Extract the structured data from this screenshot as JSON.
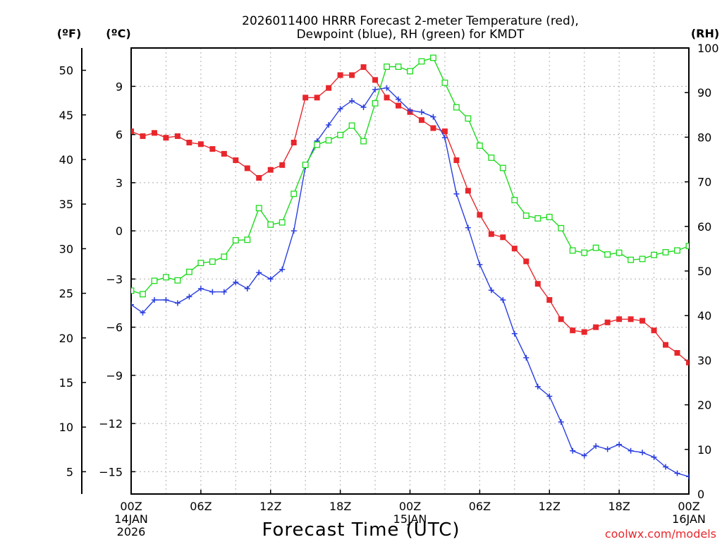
{
  "chart_data": {
    "type": "line",
    "title_line1": "2026011400 HRRR Forecast 2-meter Temperature (red),",
    "title_line2": "Dewpoint (blue), RH (green) for KMDT",
    "xlabel": "Forecast Time (UTC)",
    "credit": "coolwx.com/models",
    "units": {
      "fahrenheit": "(ºF)",
      "celsius": "(ºC)",
      "rh": "(RH)"
    },
    "left_axis_f": {
      "ylim": [
        2.5,
        52.5
      ],
      "ticks": [
        5,
        10,
        15,
        20,
        25,
        30,
        35,
        40,
        45,
        50
      ]
    },
    "left_axis_c": {
      "ylim": [
        -16.39,
        11.39
      ],
      "ticks": [
        -15,
        -12,
        -9,
        -6,
        -3,
        0,
        3,
        6,
        9
      ]
    },
    "right_axis_rh": {
      "ylim": [
        0,
        100
      ],
      "ticks": [
        0,
        10,
        20,
        30,
        40,
        50,
        60,
        70,
        80,
        90,
        100
      ]
    },
    "x_range_hours": [
      0,
      48
    ],
    "x_ticks": [
      {
        "hour": 0,
        "label": "00Z",
        "sub1": "14JAN",
        "sub2": "2026"
      },
      {
        "hour": 6,
        "label": "06Z",
        "sub1": "",
        "sub2": ""
      },
      {
        "hour": 12,
        "label": "12Z",
        "sub1": "",
        "sub2": ""
      },
      {
        "hour": 18,
        "label": "18Z",
        "sub1": "",
        "sub2": ""
      },
      {
        "hour": 24,
        "label": "00Z",
        "sub1": "15JAN",
        "sub2": ""
      },
      {
        "hour": 30,
        "label": "06Z",
        "sub1": "",
        "sub2": ""
      },
      {
        "hour": 36,
        "label": "12Z",
        "sub1": "",
        "sub2": ""
      },
      {
        "hour": 42,
        "label": "18Z",
        "sub1": "",
        "sub2": ""
      },
      {
        "hour": 48,
        "label": "00Z",
        "sub1": "16JAN",
        "sub2": ""
      }
    ],
    "series": [
      {
        "name": "Temperature",
        "axis": "celsius",
        "color": "#e8272c",
        "marker": "filled-square",
        "values": [
          6.2,
          5.9,
          6.1,
          5.8,
          5.9,
          5.5,
          5.4,
          5.1,
          4.8,
          4.4,
          3.9,
          3.3,
          3.8,
          4.1,
          5.5,
          8.3,
          8.3,
          8.9,
          9.7,
          9.7,
          10.2,
          9.4,
          8.3,
          7.8,
          7.4,
          6.9,
          6.4,
          6.2,
          4.4,
          2.5,
          1.0,
          -0.2,
          -0.4,
          -1.1,
          -1.9,
          -3.3,
          -4.3,
          -5.5,
          -6.2,
          -6.3,
          -6.0,
          -5.7,
          -5.5,
          -5.5,
          -5.6,
          -6.2,
          -7.1,
          -7.6,
          -8.2
        ]
      },
      {
        "name": "Dewpoint",
        "axis": "celsius",
        "color": "#2a3ee0",
        "marker": "plus",
        "values": [
          -4.6,
          -5.1,
          -4.3,
          -4.3,
          -4.5,
          -4.1,
          -3.6,
          -3.8,
          -3.8,
          -3.2,
          -3.6,
          -2.6,
          -3.0,
          -2.4,
          0.0,
          4.0,
          5.6,
          6.6,
          7.6,
          8.1,
          7.7,
          8.8,
          8.9,
          8.2,
          7.5,
          7.4,
          7.1,
          5.8,
          2.3,
          0.2,
          -2.1,
          -3.7,
          -4.3,
          -6.4,
          -7.9,
          -9.7,
          -10.3,
          -11.9,
          -13.7,
          -14.0,
          -13.4,
          -13.6,
          -13.3,
          -13.7,
          -13.8,
          -14.1,
          -14.7,
          -15.1,
          -15.3
        ]
      },
      {
        "name": "RH",
        "axis": "rh",
        "color": "#1ddc1d",
        "marker": "open-square",
        "values": [
          45.6,
          44.8,
          47.8,
          48.6,
          47.9,
          49.8,
          51.8,
          52.1,
          53.2,
          56.9,
          57.0,
          64.1,
          60.4,
          60.9,
          67.3,
          73.8,
          78.3,
          79.3,
          80.5,
          82.6,
          79.1,
          87.6,
          95.8,
          95.8,
          94.8,
          97.0,
          97.8,
          92.2,
          86.7,
          84.2,
          78.1,
          75.4,
          73.1,
          65.9,
          62.4,
          61.8,
          62.1,
          59.6,
          54.6,
          54.1,
          55.2,
          53.7,
          54.1,
          52.5,
          52.7,
          53.6,
          54.2,
          54.6,
          55.6
        ]
      }
    ]
  }
}
